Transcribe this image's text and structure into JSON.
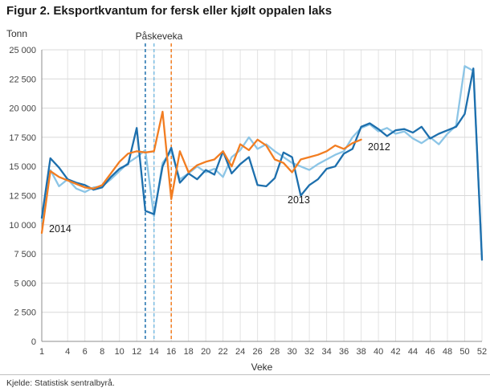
{
  "page": {
    "title": "Figur 2. Eksportkvantum for fersk eller kjølt oppalen laks",
    "source": "Kjelde: Statistisk sentralbyrå."
  },
  "chart_data": {
    "type": "line",
    "title": "Figur 2. Eksportkvantum for fersk eller kjølt oppalen laks",
    "ylabel": "Tonn",
    "xlabel": "Veke",
    "xlim": [
      1,
      52
    ],
    "ylim": [
      0,
      25000
    ],
    "grid": true,
    "legend_position": "inline-labels",
    "x_ticks": [
      1,
      4,
      6,
      8,
      10,
      12,
      14,
      16,
      18,
      20,
      22,
      24,
      26,
      28,
      30,
      32,
      34,
      36,
      38,
      40,
      42,
      44,
      46,
      48,
      50,
      52
    ],
    "y_ticks": [
      {
        "value": 0,
        "label": "0"
      },
      {
        "value": 2500,
        "label": "2 500"
      },
      {
        "value": 5000,
        "label": "5 000"
      },
      {
        "value": 7500,
        "label": "7 500"
      },
      {
        "value": 10000,
        "label": "10 000"
      },
      {
        "value": 12500,
        "label": "12 500"
      },
      {
        "value": 15000,
        "label": "15 000"
      },
      {
        "value": 17500,
        "label": "17 500"
      },
      {
        "value": 20000,
        "label": "20 000"
      },
      {
        "value": 22500,
        "label": "22 500"
      },
      {
        "value": 25000,
        "label": "25 000"
      }
    ],
    "annotations": {
      "easter_label": "Påskeveka"
    },
    "easter_lines": [
      {
        "series": "2013",
        "week": 13,
        "color": "#1d6fad"
      },
      {
        "series": "2012",
        "week": 14,
        "color": "#7cbde2"
      },
      {
        "series": "2014",
        "week": 16,
        "color": "#f27d21"
      }
    ],
    "series": [
      {
        "name": "2012",
        "color": "#8cc5e6",
        "values": [
          10300,
          14700,
          13300,
          13900,
          13100,
          12800,
          13200,
          13300,
          13900,
          14600,
          15300,
          15800,
          16400,
          10700,
          15300,
          16300,
          13900,
          14400,
          15000,
          14500,
          14800,
          14100,
          15800,
          16400,
          17500,
          16500,
          16900,
          16300,
          15800,
          15300,
          15000,
          14700,
          15200,
          15600,
          16000,
          16300,
          17500,
          18300,
          18600,
          18000,
          18300,
          17800,
          18000,
          17400,
          17000,
          17500,
          16900,
          17800,
          18500,
          23600,
          23200,
          7200
        ]
      },
      {
        "name": "2013",
        "color": "#1d6fad",
        "values": [
          10600,
          15700,
          14900,
          13900,
          13600,
          13400,
          13000,
          13200,
          14100,
          14800,
          15200,
          18300,
          11200,
          10900,
          15000,
          16600,
          13600,
          14400,
          13900,
          14700,
          14300,
          16300,
          14400,
          15200,
          15800,
          13400,
          13300,
          14000,
          16200,
          15800,
          12500,
          13400,
          13900,
          14800,
          15000,
          16100,
          16500,
          18400,
          18700,
          18200,
          17600,
          18100,
          18200,
          17900,
          18400,
          17400,
          17800,
          18100,
          18400,
          19500,
          23400,
          7000
        ]
      },
      {
        "name": "2014",
        "color": "#f27d21",
        "values": [
          9300,
          14600,
          14100,
          13800,
          13500,
          13200,
          13100,
          13400,
          14400,
          15400,
          16100,
          16300,
          16200,
          16300,
          19700,
          12200,
          16300,
          14500,
          15100,
          15400,
          15600,
          16300,
          15000,
          16900,
          16400,
          17300,
          16800,
          15600,
          15300,
          14500,
          15600,
          15800,
          16000,
          16300,
          16800,
          16500,
          17000,
          17300
        ]
      }
    ]
  }
}
